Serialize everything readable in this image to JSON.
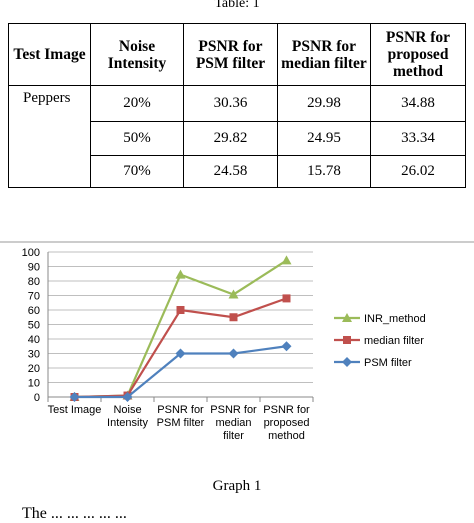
{
  "table": {
    "caption": "Table: 1",
    "headers": [
      "Test Image",
      "Noise Intensity",
      "PSNR for PSM filter",
      "PSNR for median filter",
      "PSNR for proposed method"
    ],
    "image_name": "Peppers",
    "rows": [
      {
        "noise": "20%",
        "psm": "30.36",
        "median": "29.98",
        "proposed": "34.88"
      },
      {
        "noise": "50%",
        "psm": "29.82",
        "median": "24.95",
        "proposed": "33.34"
      },
      {
        "noise": "70%",
        "psm": "24.58",
        "median": "15.78",
        "proposed": "26.02"
      }
    ]
  },
  "chart_data": {
    "type": "line",
    "categories": [
      "Test Image",
      "Noise Intensity",
      "PSNR for PSM filter",
      "PSNR for median filter",
      "PSNR for proposed method"
    ],
    "category_lines": [
      [
        "Test Image"
      ],
      [
        "Noise",
        "Intensity"
      ],
      [
        "PSNR for",
        "PSM filter"
      ],
      [
        "PSNR for",
        "median",
        "filter"
      ],
      [
        "PSNR for",
        "proposed",
        "method"
      ]
    ],
    "series": [
      {
        "name": "INR_method",
        "color": "#9bbb59",
        "marker": "triangle",
        "values": [
          0,
          1,
          84.4,
          70.7,
          94.2
        ]
      },
      {
        "name": "median filter",
        "color": "#c0504d",
        "marker": "square",
        "values": [
          0,
          1,
          60,
          55,
          68
        ]
      },
      {
        "name": "PSM filter",
        "color": "#4f81bd",
        "marker": "diamond",
        "values": [
          0,
          0,
          30,
          30,
          35
        ]
      }
    ],
    "yticks": [
      0,
      10,
      20,
      30,
      40,
      50,
      60,
      70,
      80,
      90,
      100
    ],
    "ylim": [
      0,
      100
    ],
    "grid": true,
    "legend_position": "right"
  },
  "graph_caption": "Graph 1",
  "body_text_fragment": "The  ...  ... ... ... ..."
}
